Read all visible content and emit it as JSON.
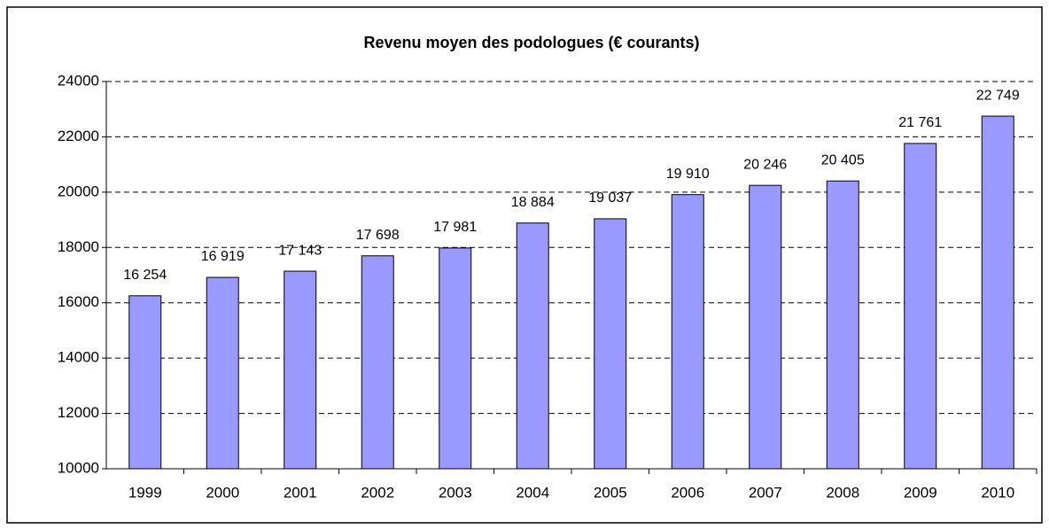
{
  "chart_data": {
    "type": "bar",
    "title": "Revenu moyen des podologues (€ courants)",
    "categories": [
      "1999",
      "2000",
      "2001",
      "2002",
      "2003",
      "2004",
      "2005",
      "2006",
      "2007",
      "2008",
      "2009",
      "2010"
    ],
    "values": [
      16254,
      16919,
      17143,
      17698,
      17981,
      18884,
      19037,
      19910,
      20246,
      20405,
      21761,
      22749
    ],
    "value_labels": [
      "16 254",
      "16 919",
      "17 143",
      "17 698",
      "17 981",
      "18 884",
      "19 037",
      "19 910",
      "20 246",
      "20 405",
      "21 761",
      "22 749"
    ],
    "color": "#9999ff",
    "ylim": [
      10000,
      24000
    ],
    "yticks": [
      10000,
      12000,
      14000,
      16000,
      18000,
      20000,
      22000,
      24000
    ],
    "grid": true
  }
}
